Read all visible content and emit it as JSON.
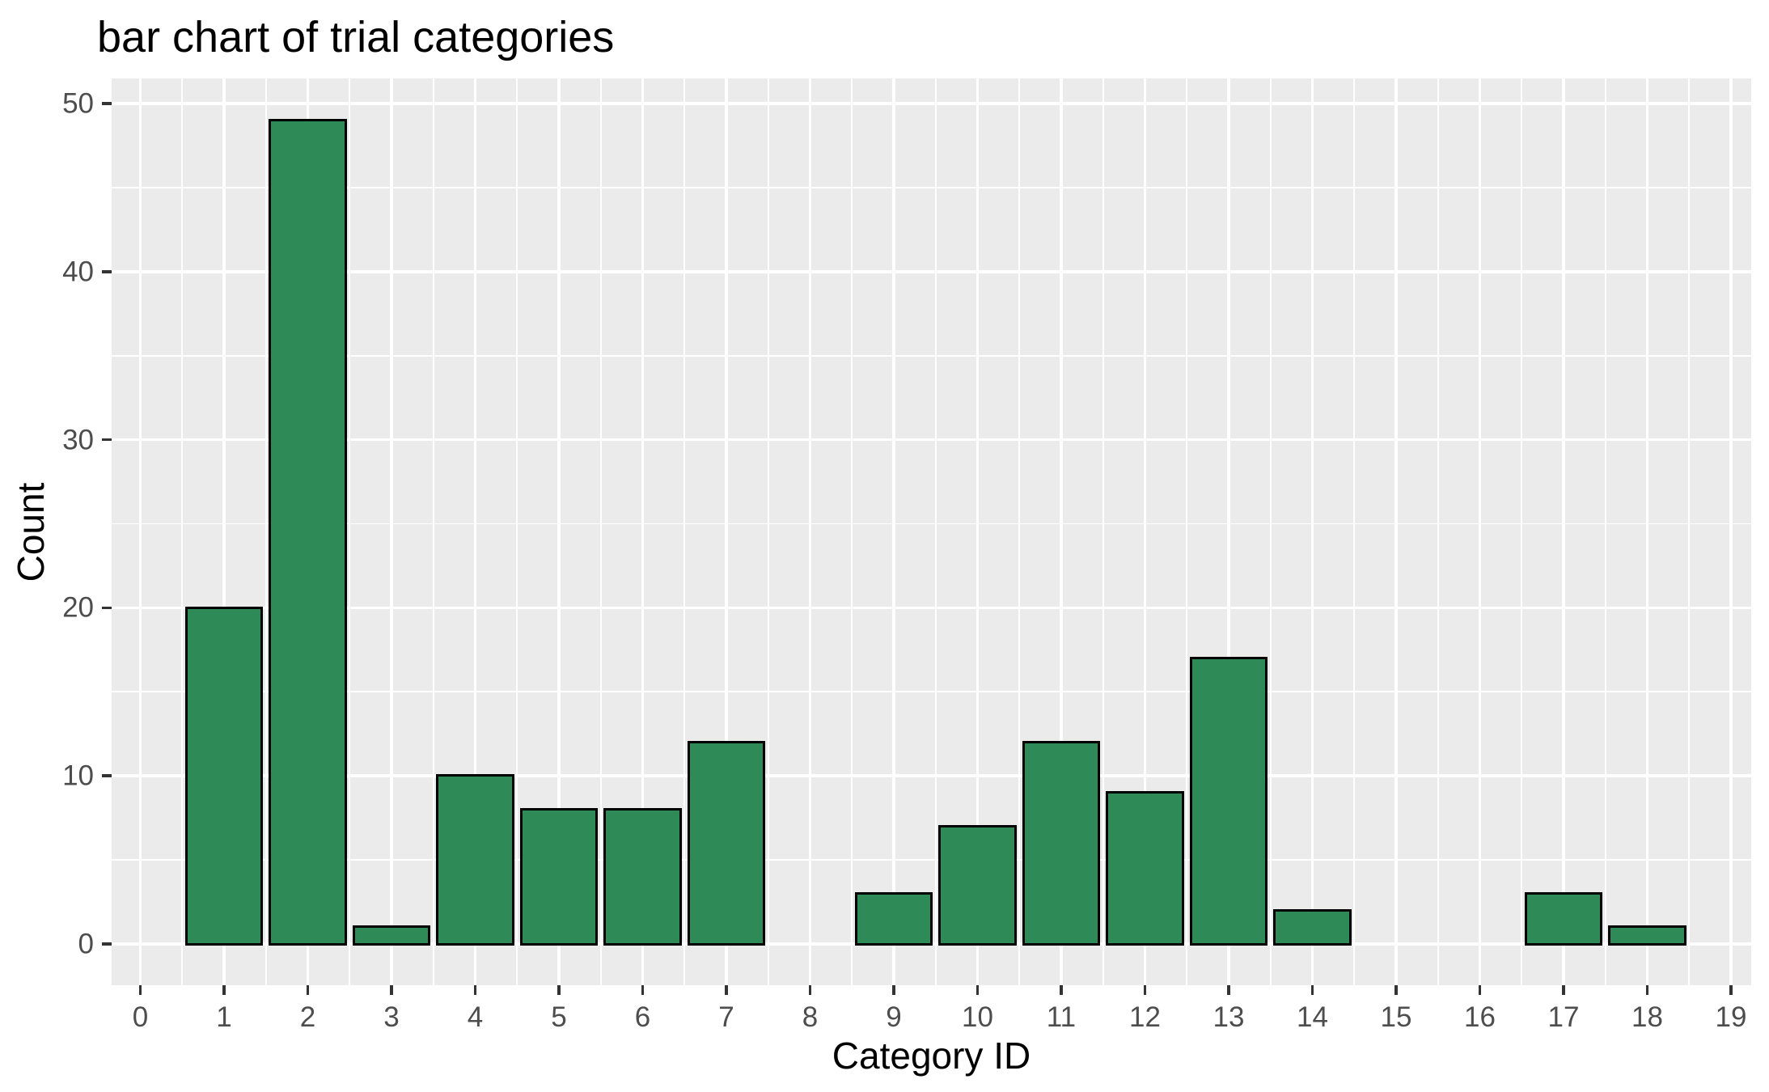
{
  "chart_data": {
    "type": "bar",
    "title": "bar chart of trial categories",
    "xlabel": "Category ID",
    "ylabel": "Count",
    "categories": [
      0,
      1,
      2,
      3,
      4,
      5,
      6,
      7,
      8,
      9,
      10,
      11,
      12,
      13,
      14,
      15,
      16,
      17,
      18,
      19
    ],
    "values": [
      0,
      20,
      49,
      1,
      10,
      8,
      8,
      12,
      0,
      3,
      7,
      12,
      9,
      17,
      2,
      0,
      0,
      3,
      1,
      0
    ],
    "bar_width": 0.9,
    "x_ticks": [
      0,
      1,
      2,
      3,
      4,
      5,
      6,
      7,
      8,
      9,
      10,
      11,
      12,
      13,
      14,
      15,
      16,
      17,
      18,
      19
    ],
    "y_ticks": [
      0,
      10,
      20,
      30,
      40,
      50
    ],
    "y_minor_ticks": [
      5,
      15,
      25,
      35,
      45
    ],
    "xlim": [
      -0.343,
      19.242
    ],
    "ylim": [
      -2.46,
      51.5
    ],
    "grid": "major-and-minor, white on grey panel",
    "legend_position": "none",
    "colors": {
      "bar_fill": "#2e8b57",
      "bar_stroke": "#000000",
      "panel_bg": "#ebebeb",
      "grid_major": "#ffffff",
      "grid_minor": "#ffffff",
      "tick_label": "#4d4d4d",
      "tick_mark": "#333333",
      "title_text": "#000000",
      "plot_bg": "#ffffff"
    }
  }
}
